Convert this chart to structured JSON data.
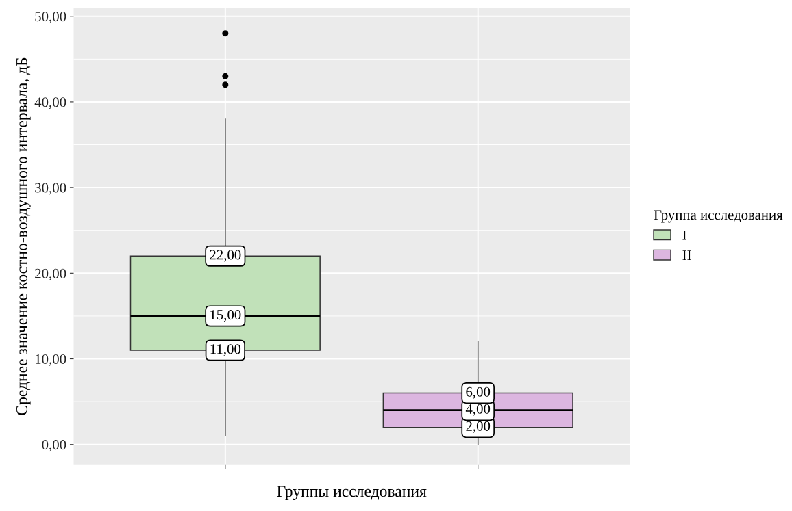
{
  "chart_data": {
    "type": "box",
    "xlabel": "Группы исследования",
    "ylabel": "Среднее значение костно-воздушного интервала, дБ",
    "legend_title": "Группа исследования",
    "categories": [
      null,
      null
    ],
    "series": [
      {
        "name": "I",
        "color": "#c1e1b9",
        "boxes": [
          {
            "low": 1,
            "q1": 11,
            "median": 15,
            "q3": 22,
            "high": 38,
            "outliers": [
              42,
              43,
              48
            ]
          },
          null
        ],
        "value_labels": [
          [
            "11,00",
            "15,00",
            "22,00"
          ],
          null
        ]
      },
      {
        "name": "II",
        "color": "#dcb6e0",
        "boxes": [
          null,
          {
            "low": 0,
            "q1": 2,
            "median": 4,
            "q3": 6,
            "high": 12
          }
        ],
        "value_labels": [
          null,
          [
            "2,00",
            "4,00",
            "6,00"
          ]
        ]
      }
    ],
    "ylim": [
      -2.4,
      51
    ],
    "yticks": [
      {
        "value": 0,
        "label": "0,00"
      },
      {
        "value": 10,
        "label": "10,00"
      },
      {
        "value": 20,
        "label": "20,00"
      },
      {
        "value": 30,
        "label": "30,00"
      },
      {
        "value": 40,
        "label": "40,00"
      },
      {
        "value": 50,
        "label": "50,00"
      }
    ],
    "grid": true,
    "legend": "right"
  }
}
